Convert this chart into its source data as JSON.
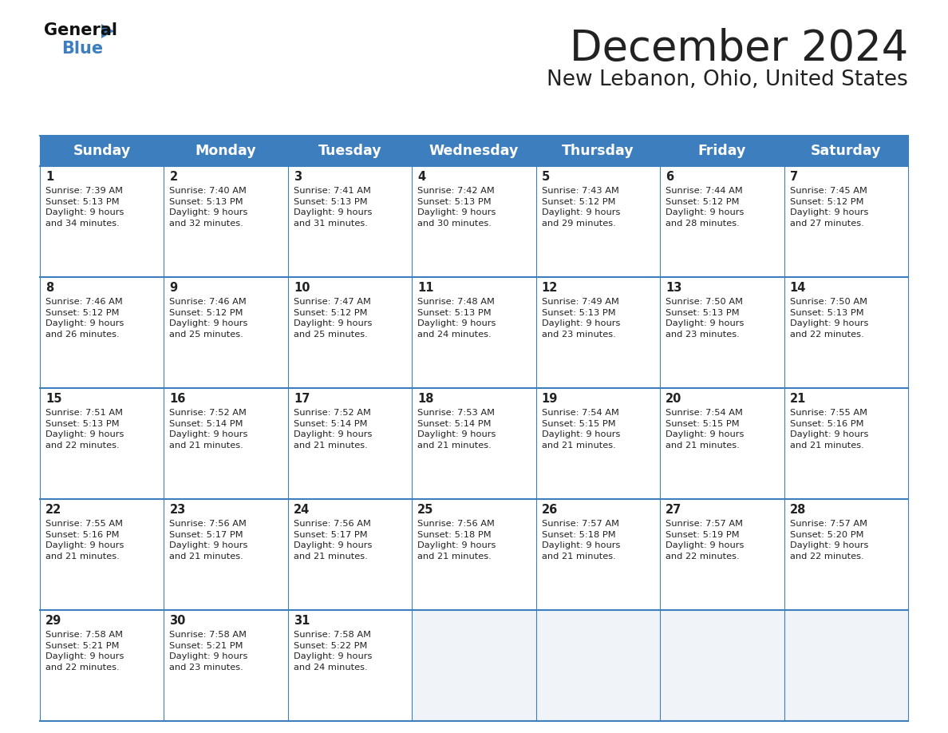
{
  "title": "December 2024",
  "subtitle": "New Lebanon, Ohio, United States",
  "header_bg_color": "#3d7ebf",
  "header_text_color": "#ffffff",
  "cell_bg_color_odd": "#f0f4f8",
  "cell_bg_color_even": "#ffffff",
  "cell_bg_empty": "#f0f4f8",
  "border_color": "#3d7ebf",
  "text_color": "#222222",
  "days_of_week": [
    "Sunday",
    "Monday",
    "Tuesday",
    "Wednesday",
    "Thursday",
    "Friday",
    "Saturday"
  ],
  "calendar_data": [
    [
      {
        "day": 1,
        "sunrise": "7:39 AM",
        "sunset": "5:13 PM",
        "daylight_hours": 9,
        "daylight_minutes": 34
      },
      {
        "day": 2,
        "sunrise": "7:40 AM",
        "sunset": "5:13 PM",
        "daylight_hours": 9,
        "daylight_minutes": 32
      },
      {
        "day": 3,
        "sunrise": "7:41 AM",
        "sunset": "5:13 PM",
        "daylight_hours": 9,
        "daylight_minutes": 31
      },
      {
        "day": 4,
        "sunrise": "7:42 AM",
        "sunset": "5:13 PM",
        "daylight_hours": 9,
        "daylight_minutes": 30
      },
      {
        "day": 5,
        "sunrise": "7:43 AM",
        "sunset": "5:12 PM",
        "daylight_hours": 9,
        "daylight_minutes": 29
      },
      {
        "day": 6,
        "sunrise": "7:44 AM",
        "sunset": "5:12 PM",
        "daylight_hours": 9,
        "daylight_minutes": 28
      },
      {
        "day": 7,
        "sunrise": "7:45 AM",
        "sunset": "5:12 PM",
        "daylight_hours": 9,
        "daylight_minutes": 27
      }
    ],
    [
      {
        "day": 8,
        "sunrise": "7:46 AM",
        "sunset": "5:12 PM",
        "daylight_hours": 9,
        "daylight_minutes": 26
      },
      {
        "day": 9,
        "sunrise": "7:46 AM",
        "sunset": "5:12 PM",
        "daylight_hours": 9,
        "daylight_minutes": 25
      },
      {
        "day": 10,
        "sunrise": "7:47 AM",
        "sunset": "5:12 PM",
        "daylight_hours": 9,
        "daylight_minutes": 25
      },
      {
        "day": 11,
        "sunrise": "7:48 AM",
        "sunset": "5:13 PM",
        "daylight_hours": 9,
        "daylight_minutes": 24
      },
      {
        "day": 12,
        "sunrise": "7:49 AM",
        "sunset": "5:13 PM",
        "daylight_hours": 9,
        "daylight_minutes": 23
      },
      {
        "day": 13,
        "sunrise": "7:50 AM",
        "sunset": "5:13 PM",
        "daylight_hours": 9,
        "daylight_minutes": 23
      },
      {
        "day": 14,
        "sunrise": "7:50 AM",
        "sunset": "5:13 PM",
        "daylight_hours": 9,
        "daylight_minutes": 22
      }
    ],
    [
      {
        "day": 15,
        "sunrise": "7:51 AM",
        "sunset": "5:13 PM",
        "daylight_hours": 9,
        "daylight_minutes": 22
      },
      {
        "day": 16,
        "sunrise": "7:52 AM",
        "sunset": "5:14 PM",
        "daylight_hours": 9,
        "daylight_minutes": 21
      },
      {
        "day": 17,
        "sunrise": "7:52 AM",
        "sunset": "5:14 PM",
        "daylight_hours": 9,
        "daylight_minutes": 21
      },
      {
        "day": 18,
        "sunrise": "7:53 AM",
        "sunset": "5:14 PM",
        "daylight_hours": 9,
        "daylight_minutes": 21
      },
      {
        "day": 19,
        "sunrise": "7:54 AM",
        "sunset": "5:15 PM",
        "daylight_hours": 9,
        "daylight_minutes": 21
      },
      {
        "day": 20,
        "sunrise": "7:54 AM",
        "sunset": "5:15 PM",
        "daylight_hours": 9,
        "daylight_minutes": 21
      },
      {
        "day": 21,
        "sunrise": "7:55 AM",
        "sunset": "5:16 PM",
        "daylight_hours": 9,
        "daylight_minutes": 21
      }
    ],
    [
      {
        "day": 22,
        "sunrise": "7:55 AM",
        "sunset": "5:16 PM",
        "daylight_hours": 9,
        "daylight_minutes": 21
      },
      {
        "day": 23,
        "sunrise": "7:56 AM",
        "sunset": "5:17 PM",
        "daylight_hours": 9,
        "daylight_minutes": 21
      },
      {
        "day": 24,
        "sunrise": "7:56 AM",
        "sunset": "5:17 PM",
        "daylight_hours": 9,
        "daylight_minutes": 21
      },
      {
        "day": 25,
        "sunrise": "7:56 AM",
        "sunset": "5:18 PM",
        "daylight_hours": 9,
        "daylight_minutes": 21
      },
      {
        "day": 26,
        "sunrise": "7:57 AM",
        "sunset": "5:18 PM",
        "daylight_hours": 9,
        "daylight_minutes": 21
      },
      {
        "day": 27,
        "sunrise": "7:57 AM",
        "sunset": "5:19 PM",
        "daylight_hours": 9,
        "daylight_minutes": 22
      },
      {
        "day": 28,
        "sunrise": "7:57 AM",
        "sunset": "5:20 PM",
        "daylight_hours": 9,
        "daylight_minutes": 22
      }
    ],
    [
      {
        "day": 29,
        "sunrise": "7:58 AM",
        "sunset": "5:21 PM",
        "daylight_hours": 9,
        "daylight_minutes": 22
      },
      {
        "day": 30,
        "sunrise": "7:58 AM",
        "sunset": "5:21 PM",
        "daylight_hours": 9,
        "daylight_minutes": 23
      },
      {
        "day": 31,
        "sunrise": "7:58 AM",
        "sunset": "5:22 PM",
        "daylight_hours": 9,
        "daylight_minutes": 24
      },
      null,
      null,
      null,
      null
    ]
  ],
  "logo_general_color": "#111111",
  "logo_blue_color": "#3d7ebf",
  "title_fontsize": 38,
  "subtitle_fontsize": 19,
  "header_fontsize": 12.5,
  "day_num_fontsize": 10.5,
  "cell_text_fontsize": 8.2
}
